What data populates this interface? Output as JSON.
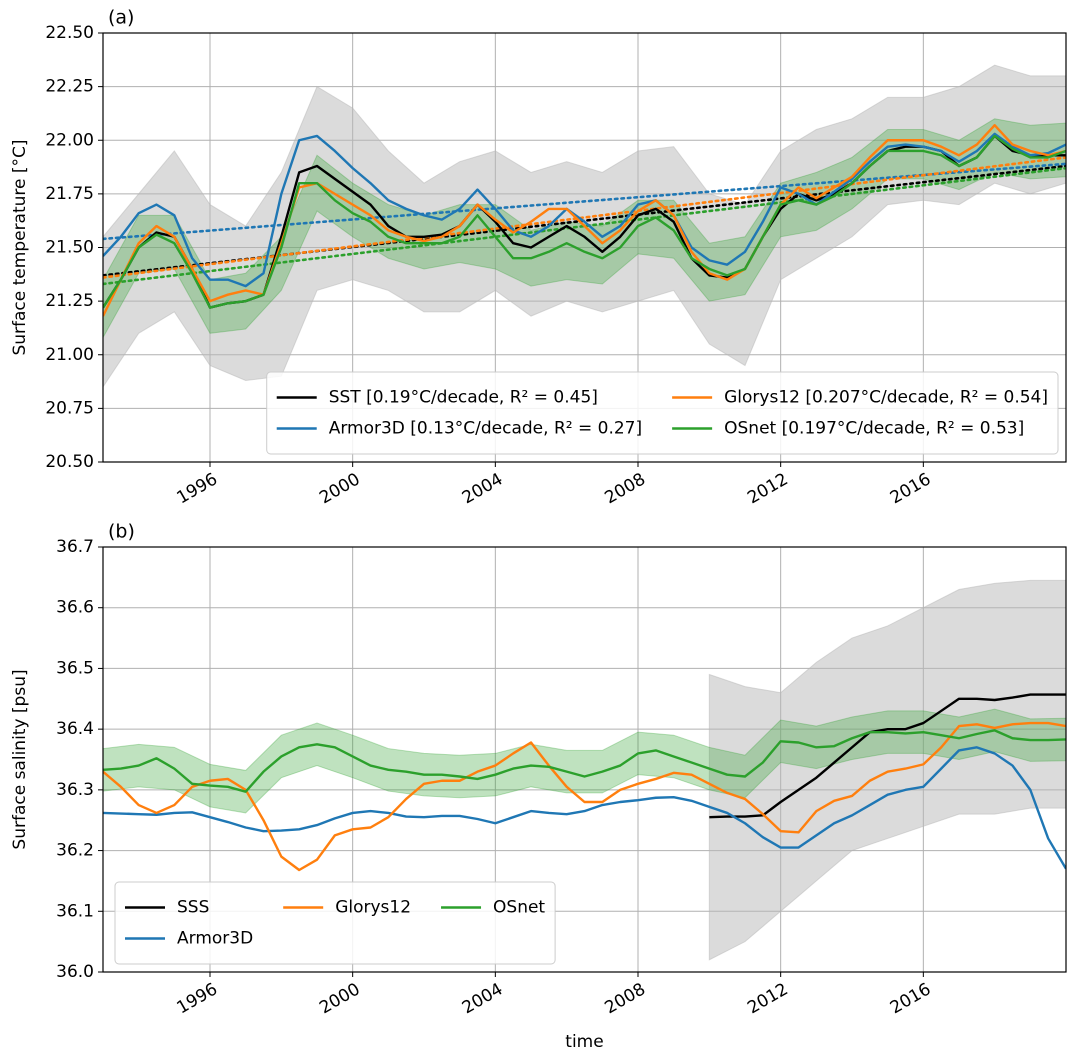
{
  "chart_data": [
    {
      "type": "line",
      "title": "(a)",
      "ylabel": "Surface temperature [°C]",
      "xlim": [
        1993,
        2020
      ],
      "xticks": [
        1996,
        2000,
        2004,
        2008,
        2012,
        2016
      ],
      "ylim": [
        20.5,
        22.5
      ],
      "yticks": [
        {
          "value": 20.5,
          "label": "20.50"
        },
        20.75,
        {
          "value": 21,
          "label": "21.00"
        },
        21.25,
        {
          "value": 21.5,
          "label": "21.50"
        },
        21.75,
        {
          "value": 22,
          "label": "22.00"
        },
        22.25,
        {
          "value": 22.5,
          "label": "22.50"
        }
      ],
      "grid": true,
      "legend": "lower right",
      "legend_columns": 2,
      "x": [
        1993,
        1993.5,
        1994,
        1994.5,
        1995,
        1995.5,
        1996,
        1996.5,
        1997,
        1997.5,
        1998,
        1998.5,
        1999,
        1999.5,
        2000,
        2000.5,
        2001,
        2001.5,
        2002,
        2002.5,
        2003,
        2003.5,
        2004,
        2004.5,
        2005,
        2005.5,
        2006,
        2006.5,
        2007,
        2007.5,
        2008,
        2008.5,
        2009,
        2009.5,
        2010,
        2010.5,
        2011,
        2011.5,
        2012,
        2012.5,
        2013,
        2013.5,
        2014,
        2014.5,
        2015,
        2015.5,
        2016,
        2016.5,
        2017,
        2017.5,
        2018,
        2018.5,
        2019,
        2019.5,
        2020
      ],
      "trend_x": [
        1993,
        2020
      ],
      "bands": [
        {
          "color": "#b8b8b8",
          "opacity": 0.5,
          "x": [
            1993,
            1994,
            1995,
            1996,
            1997,
            1998,
            1999,
            2000,
            2001,
            2002,
            2003,
            2004,
            2005,
            2006,
            2007,
            2008,
            2009,
            2010,
            2011,
            2012,
            2013,
            2014,
            2015,
            2016,
            2017,
            2018,
            2019,
            2020
          ],
          "upper": [
            21.55,
            21.75,
            21.95,
            21.7,
            21.6,
            21.85,
            22.25,
            22.15,
            21.95,
            21.8,
            21.9,
            21.95,
            21.85,
            21.9,
            21.85,
            21.95,
            21.97,
            21.75,
            21.7,
            21.95,
            22.05,
            22.1,
            22.2,
            22.2,
            22.25,
            22.35,
            22.3,
            22.3
          ],
          "lower": [
            20.85,
            21.1,
            21.2,
            20.95,
            20.88,
            20.9,
            21.3,
            21.35,
            21.3,
            21.2,
            21.2,
            21.3,
            21.18,
            21.25,
            21.2,
            21.25,
            21.3,
            21.05,
            20.95,
            21.35,
            21.45,
            21.55,
            21.7,
            21.72,
            21.7,
            21.8,
            21.75,
            21.8
          ]
        },
        {
          "color": "#2ca02c",
          "opacity": 0.3,
          "x": [
            1993,
            1994,
            1995,
            1996,
            1997,
            1998,
            1999,
            2000,
            2001,
            2002,
            2003,
            2004,
            2005,
            2006,
            2007,
            2008,
            2009,
            2010,
            2011,
            2012,
            2013,
            2014,
            2015,
            2016,
            2017,
            2018,
            2019,
            2020
          ],
          "upper": [
            21.35,
            21.65,
            21.65,
            21.35,
            21.38,
            21.55,
            21.93,
            21.8,
            21.7,
            21.65,
            21.7,
            21.7,
            21.58,
            21.62,
            21.6,
            21.72,
            21.72,
            21.52,
            21.55,
            21.8,
            21.85,
            21.92,
            22.05,
            22.05,
            22,
            22.1,
            22.07,
            22.08
          ],
          "lower": [
            21.08,
            21.38,
            21.4,
            21.1,
            21.12,
            21.3,
            21.67,
            21.55,
            21.45,
            21.4,
            21.43,
            21.4,
            21.32,
            21.35,
            21.33,
            21.47,
            21.45,
            21.25,
            21.28,
            21.55,
            21.58,
            21.68,
            21.82,
            21.82,
            21.77,
            21.85,
            21.82,
            21.83
          ]
        }
      ],
      "series": [
        {
          "name": "SST [0.19°C/decade, R² = 0.45]",
          "color": "#000000",
          "trend": [
            21.37,
            21.88
          ],
          "values": [
            21.22,
            21.35,
            21.5,
            21.57,
            21.55,
            21.4,
            21.22,
            21.24,
            21.25,
            21.28,
            21.55,
            21.85,
            21.88,
            21.82,
            21.76,
            21.7,
            21.6,
            21.55,
            21.55,
            21.56,
            21.6,
            21.7,
            21.62,
            21.52,
            21.5,
            21.55,
            21.6,
            21.55,
            21.48,
            21.55,
            21.65,
            21.68,
            21.62,
            21.45,
            21.37,
            21.36,
            21.4,
            21.55,
            21.68,
            21.75,
            21.72,
            21.75,
            21.8,
            21.88,
            21.95,
            21.97,
            21.97,
            21.95,
            21.88,
            21.92,
            22.02,
            21.95,
            21.93,
            21.93,
            21.93
          ]
        },
        {
          "name": "Armor3D [0.13°C/decade, R² = 0.27]",
          "color": "#1f77b4",
          "trend": [
            21.54,
            21.89
          ],
          "values": [
            21.46,
            21.55,
            21.66,
            21.7,
            21.65,
            21.45,
            21.35,
            21.35,
            21.32,
            21.38,
            21.75,
            22,
            22.02,
            21.95,
            21.87,
            21.8,
            21.72,
            21.68,
            21.65,
            21.63,
            21.68,
            21.77,
            21.68,
            21.58,
            21.55,
            21.6,
            21.68,
            21.62,
            21.55,
            21.6,
            21.7,
            21.72,
            21.65,
            21.5,
            21.44,
            21.42,
            21.48,
            21.62,
            21.78,
            21.75,
            21.7,
            21.76,
            21.82,
            21.9,
            21.97,
            21.98,
            21.97,
            21.95,
            21.9,
            21.95,
            22.03,
            21.97,
            21.93,
            21.94,
            21.98
          ]
        },
        {
          "name": "Glorys12 [0.207°C/decade, R² = 0.54]",
          "color": "#ff7f0e",
          "trend": [
            21.36,
            21.92
          ],
          "values": [
            21.18,
            21.35,
            21.52,
            21.6,
            21.55,
            21.4,
            21.25,
            21.28,
            21.3,
            21.28,
            21.52,
            21.78,
            21.8,
            21.75,
            21.7,
            21.65,
            21.58,
            21.55,
            21.53,
            21.55,
            21.6,
            21.7,
            21.63,
            21.57,
            21.62,
            21.68,
            21.68,
            21.6,
            21.52,
            21.58,
            21.67,
            21.72,
            21.65,
            21.48,
            21.38,
            21.35,
            21.4,
            21.55,
            21.7,
            21.78,
            21.73,
            21.78,
            21.83,
            21.92,
            22,
            22,
            22,
            21.97,
            21.93,
            21.98,
            22.07,
            21.98,
            21.95,
            21.93,
            21.95
          ]
        },
        {
          "name": "OSnet [0.197°C/decade, R² = 0.53]",
          "color": "#2ca02c",
          "trend": [
            21.33,
            21.87
          ],
          "values": [
            21.22,
            21.35,
            21.5,
            21.56,
            21.52,
            21.38,
            21.22,
            21.24,
            21.25,
            21.28,
            21.5,
            21.8,
            21.8,
            21.72,
            21.66,
            21.62,
            21.55,
            21.52,
            21.52,
            21.52,
            21.55,
            21.65,
            21.55,
            21.45,
            21.45,
            21.48,
            21.52,
            21.48,
            21.45,
            21.5,
            21.6,
            21.64,
            21.58,
            21.45,
            21.4,
            21.37,
            21.4,
            21.55,
            21.7,
            21.72,
            21.7,
            21.74,
            21.8,
            21.88,
            21.95,
            21.95,
            21.95,
            21.93,
            21.88,
            21.92,
            22.02,
            21.96,
            21.92,
            21.92,
            21.95
          ]
        }
      ]
    },
    {
      "type": "line",
      "title": "(b)",
      "ylabel": "Surface salinity [psu]",
      "xlabel": "time",
      "xlim": [
        1993,
        2020
      ],
      "xticks": [
        1996,
        2000,
        2004,
        2008,
        2012,
        2016
      ],
      "ylim": [
        36,
        36.7
      ],
      "yticks": [
        {
          "value": 36,
          "label": "36.0"
        },
        36.1,
        36.2,
        36.3,
        36.4,
        36.5,
        36.6,
        36.7
      ],
      "grid": true,
      "legend": "lower left",
      "legend_columns": 3,
      "x": [
        1993,
        1993.5,
        1994,
        1994.5,
        1995,
        1995.5,
        1996,
        1996.5,
        1997,
        1997.5,
        1998,
        1998.5,
        1999,
        1999.5,
        2000,
        2000.5,
        2001,
        2001.5,
        2002,
        2002.5,
        2003,
        2003.5,
        2004,
        2004.5,
        2005,
        2005.5,
        2006,
        2006.5,
        2007,
        2007.5,
        2008,
        2008.5,
        2009,
        2009.5,
        2010,
        2010.5,
        2011,
        2011.5,
        2012,
        2012.5,
        2013,
        2013.5,
        2014,
        2014.5,
        2015,
        2015.5,
        2016,
        2016.5,
        2017,
        2017.5,
        2018,
        2018.5,
        2019,
        2019.5,
        2020
      ],
      "bands": [
        {
          "color": "#b8b8b8",
          "opacity": 0.5,
          "x": [
            2010,
            2011,
            2012,
            2013,
            2014,
            2015,
            2016,
            2017,
            2018,
            2019,
            2020
          ],
          "upper": [
            36.49,
            36.47,
            36.46,
            36.51,
            36.55,
            36.57,
            36.6,
            36.63,
            36.64,
            36.645,
            36.645
          ],
          "lower": [
            36.02,
            36.05,
            36.1,
            36.15,
            36.2,
            36.22,
            36.24,
            36.26,
            36.26,
            36.27,
            36.27
          ]
        },
        {
          "color": "#2ca02c",
          "opacity": 0.3,
          "x": [
            1993,
            1994,
            1995,
            1996,
            1997,
            1998,
            1999,
            2000,
            2001,
            2002,
            2003,
            2004,
            2005,
            2006,
            2007,
            2008,
            2009,
            2010,
            2011,
            2012,
            2013,
            2014,
            2015,
            2016,
            2017,
            2018,
            2019,
            2020
          ],
          "upper": [
            36.368,
            36.375,
            36.37,
            36.342,
            36.332,
            36.39,
            36.41,
            36.39,
            36.368,
            36.36,
            36.357,
            36.36,
            36.375,
            36.365,
            36.365,
            36.395,
            36.39,
            36.37,
            36.357,
            36.415,
            36.405,
            36.42,
            36.43,
            36.43,
            36.42,
            36.433,
            36.417,
            36.418
          ],
          "lower": [
            36.298,
            36.305,
            36.3,
            36.272,
            36.262,
            36.32,
            36.34,
            36.32,
            36.298,
            36.29,
            36.287,
            36.29,
            36.305,
            36.295,
            36.295,
            36.325,
            36.32,
            36.3,
            36.287,
            36.345,
            36.335,
            36.35,
            36.36,
            36.36,
            36.35,
            36.363,
            36.347,
            36.348
          ]
        }
      ],
      "series": [
        {
          "name": "SSS",
          "color": "#000000",
          "values": [
            null,
            null,
            null,
            null,
            null,
            null,
            null,
            null,
            null,
            null,
            null,
            null,
            null,
            null,
            null,
            null,
            null,
            null,
            null,
            null,
            null,
            null,
            null,
            null,
            null,
            null,
            null,
            null,
            null,
            null,
            null,
            null,
            null,
            null,
            36.255,
            36.256,
            36.256,
            36.258,
            36.28,
            36.3,
            36.32,
            36.345,
            36.37,
            36.395,
            36.4,
            36.4,
            36.41,
            36.43,
            36.45,
            36.45,
            36.448,
            36.452,
            36.457,
            36.457,
            36.457
          ]
        },
        {
          "name": "Armor3D",
          "color": "#1f77b4",
          "values": [
            36.262,
            36.261,
            36.26,
            36.259,
            36.262,
            36.263,
            36.255,
            36.247,
            36.238,
            36.232,
            36.233,
            36.235,
            36.242,
            36.253,
            36.262,
            36.265,
            36.262,
            36.256,
            36.255,
            36.257,
            36.257,
            36.252,
            36.245,
            36.255,
            36.265,
            36.262,
            36.26,
            36.265,
            36.275,
            36.28,
            36.283,
            36.287,
            36.288,
            36.282,
            36.272,
            36.262,
            36.245,
            36.222,
            36.205,
            36.205,
            36.225,
            36.245,
            36.258,
            36.275,
            36.292,
            36.3,
            36.305,
            36.335,
            36.365,
            36.37,
            36.36,
            36.34,
            36.3,
            36.22,
            36.17
          ]
        },
        {
          "name": "Glorys12",
          "color": "#ff7f0e",
          "values": [
            36.33,
            36.305,
            36.275,
            36.262,
            36.275,
            36.305,
            36.315,
            36.318,
            36.3,
            36.25,
            36.19,
            36.168,
            36.185,
            36.225,
            36.235,
            36.238,
            36.255,
            36.285,
            36.31,
            36.315,
            36.315,
            36.33,
            36.34,
            36.36,
            36.378,
            36.34,
            36.305,
            36.28,
            36.28,
            36.3,
            36.31,
            36.318,
            36.328,
            36.325,
            36.31,
            36.295,
            36.285,
            36.26,
            36.232,
            36.23,
            36.265,
            36.282,
            36.29,
            36.315,
            36.33,
            36.335,
            36.342,
            36.37,
            36.405,
            36.408,
            36.402,
            36.408,
            36.41,
            36.41,
            36.405
          ]
        },
        {
          "name": "OSnet",
          "color": "#2ca02c",
          "values": [
            36.333,
            36.335,
            36.34,
            36.352,
            36.335,
            36.31,
            36.307,
            36.305,
            36.297,
            36.33,
            36.355,
            36.37,
            36.375,
            36.37,
            36.355,
            36.34,
            36.333,
            36.33,
            36.325,
            36.325,
            36.322,
            36.318,
            36.325,
            36.335,
            36.34,
            36.338,
            36.33,
            36.322,
            36.33,
            36.34,
            36.36,
            36.365,
            36.355,
            36.345,
            36.335,
            36.325,
            36.322,
            36.345,
            36.38,
            36.378,
            36.37,
            36.372,
            36.385,
            36.395,
            36.395,
            36.393,
            36.395,
            36.39,
            36.385,
            36.392,
            36.398,
            36.385,
            36.382,
            36.382,
            36.383
          ]
        }
      ]
    }
  ]
}
